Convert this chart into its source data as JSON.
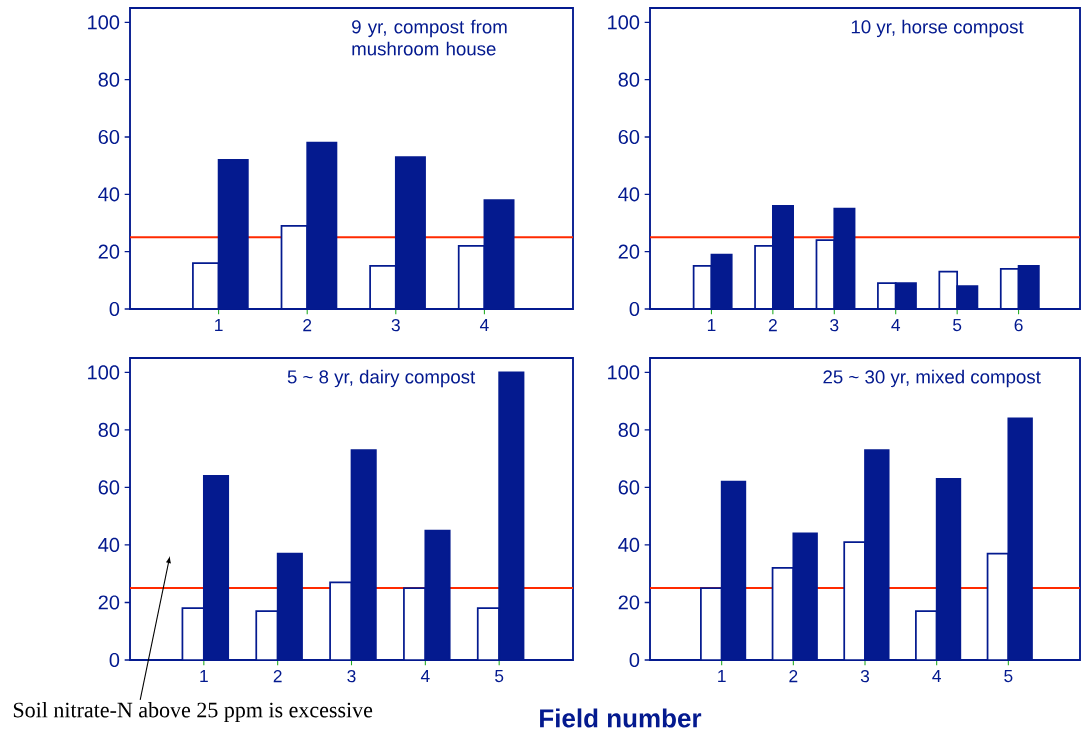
{
  "chart_data": [
    {
      "type": "bar",
      "title": "9 yr, compost from mushroom house",
      "categories": [
        "1",
        "2",
        "3",
        "4"
      ],
      "series": [
        {
          "color": "#ffffff",
          "values": [
            16,
            29,
            15,
            22
          ]
        },
        {
          "color": "#041a8f",
          "values": [
            52,
            58,
            53,
            38
          ]
        }
      ],
      "ylim": [
        0,
        105
      ],
      "yticks": [
        0,
        20,
        40,
        60,
        80,
        100
      ],
      "ref_lines": [
        {
          "axis": "y",
          "value": 25,
          "color": "#ff2a00"
        }
      ]
    },
    {
      "type": "bar",
      "title": "10 yr, horse compost",
      "categories": [
        "1",
        "2",
        "3",
        "4",
        "5",
        "6"
      ],
      "series": [
        {
          "color": "#ffffff",
          "values": [
            15,
            22,
            24,
            9,
            13,
            14
          ]
        },
        {
          "color": "#041a8f",
          "values": [
            19,
            36,
            35,
            9,
            8,
            15
          ]
        }
      ],
      "ylim": [
        0,
        105
      ],
      "yticks": [
        0,
        20,
        40,
        60,
        80,
        100
      ],
      "ref_lines": [
        {
          "axis": "y",
          "value": 25,
          "color": "#ff2a00"
        }
      ]
    },
    {
      "type": "bar",
      "title": "5 ~ 8 yr, dairy compost",
      "xlabel": "Field number",
      "categories": [
        "1",
        "2",
        "3",
        "4",
        "5"
      ],
      "series": [
        {
          "color": "#ffffff",
          "values": [
            18,
            17,
            27,
            25,
            18
          ]
        },
        {
          "color": "#041a8f",
          "values": [
            64,
            37,
            73,
            45,
            100
          ]
        }
      ],
      "ylim": [
        0,
        105
      ],
      "yticks": [
        0,
        20,
        40,
        60,
        80,
        100
      ],
      "ref_lines": [
        {
          "axis": "y",
          "value": 25,
          "color": "#ff2a00"
        }
      ],
      "annotations": [
        "Soil nitrate-N above 25 ppm is excessive"
      ]
    },
    {
      "type": "bar",
      "title": "25 ~ 30 yr, mixed compost",
      "categories": [
        "1",
        "2",
        "3",
        "4",
        "5"
      ],
      "series": [
        {
          "color": "#ffffff",
          "values": [
            25,
            32,
            41,
            17,
            37
          ]
        },
        {
          "color": "#041a8f",
          "values": [
            62,
            44,
            73,
            63,
            84
          ]
        }
      ],
      "ylim": [
        0,
        105
      ],
      "yticks": [
        0,
        20,
        40,
        60,
        80,
        100
      ],
      "ref_lines": [
        {
          "axis": "y",
          "value": 25,
          "color": "#ff2a00"
        }
      ]
    }
  ]
}
